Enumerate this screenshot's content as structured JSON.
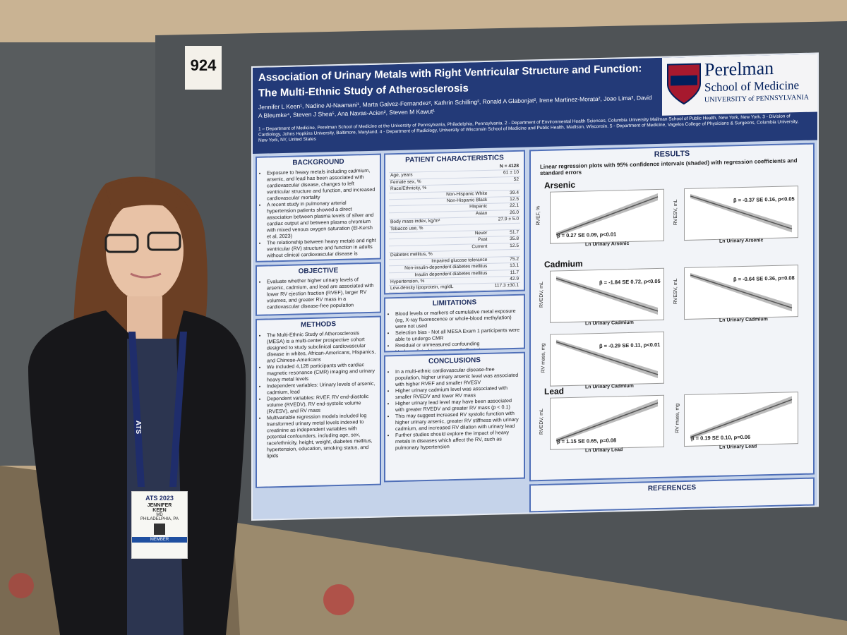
{
  "booth_number": "924",
  "poster": {
    "title_line1": "Association of Urinary Metals with Right Ventricular Structure and Function:",
    "title_line2": "The Multi-Ethnic Study of Atherosclerosis",
    "authors": "Jennifer L Keen¹, Nadine Al-Naamani¹, Marta Galvez-Fernandez², Kathrin Schilling², Ronald A Glabonjat², Irene Martinez-Morata², Joao Lima³, David A Bleumke⁴, Steven J Shea⁵, Ana Navas-Acien², Steven M Kawut¹",
    "affiliations": "1 – Department of Medicine, Perelman School of Medicine at the University of Pennsylvania, Philadelphia, Pennsylvania. 2 - Department of Environmental Health Sciences, Columbia University Mailman School of Public Health, New York, New York. 3 - Division of Cardiology, Johns Hopkins University, Baltimore, Maryland. 4 - Department of Radiology, University of Wisconsin School of Medicine and Public Health, Madison, Wisconsin. 5 - Department of Medicine, Vagelos College of Physicians & Surgeons, Columbia University, New York, NY, United States",
    "logo": {
      "name": "Perelman",
      "school": "School of Medicine",
      "university": "UNIVERSITY of PENNSYLVANIA"
    },
    "background": {
      "heading": "BACKGROUND",
      "bullets": [
        "Exposure to heavy metals including cadmium, arsenic, and lead has been associated with cardiovascular disease, changes to left ventricular structure and function, and increased cardiovascular mortality",
        "A recent study in pulmonary arterial hypertension patients showed a direct association between plasma levels of silver and cardiac output and between plasma chromium with mixed venous oxygen saturation (El-Kersh et al, 2023)",
        "The relationship between heavy metals and right ventricular (RV) structure and function in adults without clinical cardiovascular disease is unknown"
      ]
    },
    "objective": {
      "heading": "OBJECTIVE",
      "bullets": [
        "Evaluate whether higher urinary levels of arsenic, cadmium, and lead are associated with lower RV ejection fraction (RVEF), larger RV volumes, and greater RV mass in a cardiovascular disease-free population"
      ]
    },
    "methods": {
      "heading": "METHODS",
      "bullets": [
        "The Multi-Ethnic Study of Atherosclerosis (MESA) is a multi-center prospective cohort designed to study subclinical cardiovascular disease in whites, African-Americans, Hispanics, and Chinese-Americans",
        "We included 4,128 participants with cardiac magnetic resonance (CMR) imaging and urinary heavy metal levels",
        "Independent variables: Urinary levels of arsenic, cadmium, lead",
        "Dependent variables: RVEF, RV end-diastolic volume (RVEDV), RV end-systolic volume (RVESV), and RV mass",
        "Multivariable regression models included log transformed urinary metal levels indexed to creatinine as independent variables with potential confounders, including age, sex, race/ethnicity, height, weight, diabetes mellitus, hypertension, education, smoking status, and lipids"
      ]
    },
    "patient_characteristics": {
      "heading": "PATIENT CHARACTERISTICS",
      "n_header": "N = 4128",
      "rows": [
        [
          "Age, years",
          "61 ± 10"
        ],
        [
          "Female sex, %",
          "52"
        ],
        [
          "Race/Ethnicity, %",
          ""
        ],
        [
          "Non-Hispanic White",
          "39.4"
        ],
        [
          "Non-Hispanic Black",
          "12.5"
        ],
        [
          "Hispanic",
          "22.1"
        ],
        [
          "Asian",
          "26.0"
        ],
        [
          "Body mass index, kg/m²",
          "27.9 ± 5.0"
        ],
        [
          "Tobacco use, %",
          ""
        ],
        [
          "Never",
          "51.7"
        ],
        [
          "Past",
          "35.8"
        ],
        [
          "Current",
          "12.5"
        ],
        [
          "Diabetes mellitus, %",
          ""
        ],
        [
          "Impaired glucose tolerance",
          "75.2"
        ],
        [
          "Non-insulin-dependent diabetes mellitus",
          "13.1"
        ],
        [
          "Insulin dependent diabetes mellitus",
          "11.7"
        ],
        [
          "Hypertension, %",
          "42.9"
        ],
        [
          "Low-density lipoprotein, mg/dL",
          "117.3 ±30.1"
        ]
      ]
    },
    "limitations": {
      "heading": "LIMITATIONS",
      "bullets": [
        "Blood levels or markers of cumulative metal exposure (eg, X-ray fluorescence or whole-blood methylation) were not used",
        "Selection bias - Not all MESA Exam 1 participants were able to undergo CMR",
        "Residual or unmeasured confounding",
        "Unclear clinical importance of effect sizes"
      ]
    },
    "conclusions": {
      "heading": "CONCLUSIONS",
      "bullets": [
        "In a multi-ethnic cardiovascular disease-free population, higher urinary arsenic level was associated with higher RVEF and smaller RVESV",
        "Higher urinary cadmium level was associated with smaller RVEDV and lower RV mass",
        "Higher urinary lead level may have been associated with greater RVEDV and greater RV mass (p < 0.1)",
        "This may suggest increased RV systolic function with higher urinary arsenic, greater RV stiffness with urinary cadmium, and increased RV dilation with urinary lead",
        "Further studies should explore the impact of heavy metals in diseases which affect the RV, such as pulmonary hypertension"
      ]
    },
    "results": {
      "heading": "RESULTS",
      "subtitle": "Linear regression plots with 95% confidence intervals (shaded) with regression coefficients and standard errors",
      "panels": [
        {
          "metal": "Arsenic",
          "plots": [
            {
              "ylabel": "RVEF, %",
              "xlabel": "Ln Urinary Arsenic",
              "stat": "β = 0.27 SE 0.09, p<0.01"
            },
            {
              "ylabel": "RVESV, mL",
              "xlabel": "Ln Urinary Arsenic",
              "stat": "β = -0.37 SE 0.16, p<0.05"
            }
          ]
        },
        {
          "metal": "Cadmium",
          "plots": [
            {
              "ylabel": "RVEDV, mL",
              "xlabel": "Ln Urinary Cadmium",
              "stat": "β = -1.84 SE 0.72, p<0.05"
            },
            {
              "ylabel": "RVESV, mL",
              "xlabel": "Ln Urinary Cadmium",
              "stat": "β = -0.64 SE 0.36, p=0.08"
            },
            {
              "ylabel": "RV mass, mg",
              "xlabel": "Ln Urinary Cadmium",
              "stat": "β = -0.29 SE 0.11, p<0.01"
            }
          ]
        },
        {
          "metal": "Lead",
          "plots": [
            {
              "ylabel": "RVEDV, mL",
              "xlabel": "Ln Urinary Lead",
              "stat": "β = 1.15 SE 0.65, p=0.08"
            },
            {
              "ylabel": "RV mass, mg",
              "xlabel": "Ln Urinary Lead",
              "stat": "β = 0.19 SE 0.10, p=0.06"
            }
          ]
        }
      ]
    },
    "references_heading": "REFERENCES"
  },
  "badge": {
    "event": "ATS 2023",
    "first_name": "JENNIFER",
    "last_name": "KEEN",
    "degree": "MD",
    "city": "PHILADELPHIA, PA",
    "type": "MEMBER",
    "lanyard": "ATS"
  }
}
